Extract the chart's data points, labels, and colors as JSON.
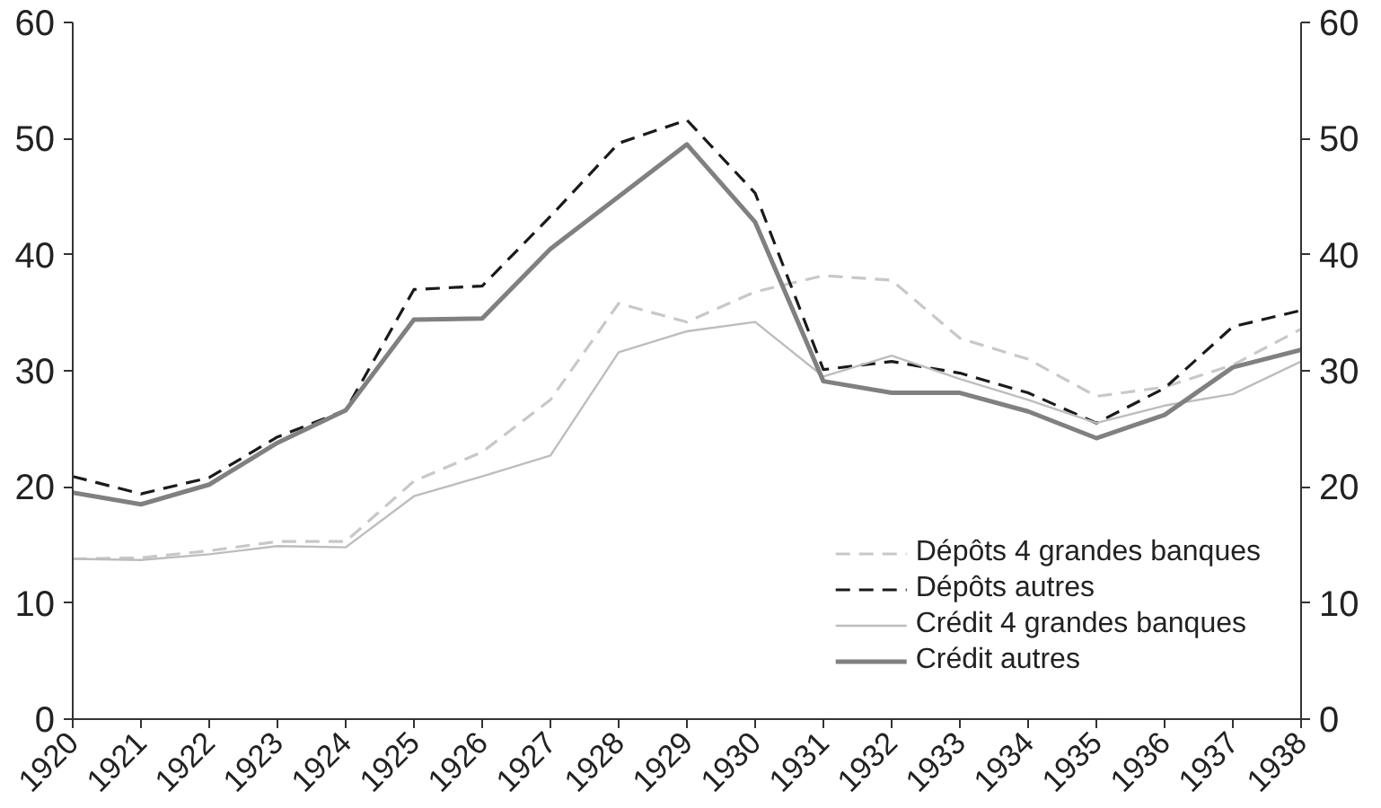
{
  "chart_data": {
    "type": "line",
    "categories": [
      "1920",
      "1921",
      "1922",
      "1923",
      "1924",
      "1925",
      "1926",
      "1927",
      "1928",
      "1929",
      "1930",
      "1931",
      "1932",
      "1933",
      "1934",
      "1935",
      "1936",
      "1937",
      "1938"
    ],
    "series": [
      {
        "name": "Dépôts 4 grandes banques",
        "color": "#c8c8c8",
        "line_style": "dashed",
        "values": [
          13.8,
          13.9,
          14.5,
          15.3,
          15.3,
          20.5,
          23,
          27.5,
          35.8,
          34.2,
          36.8,
          38.2,
          37.8,
          32.8,
          31,
          27.8,
          28.6,
          30.5,
          33.6
        ]
      },
      {
        "name": "Dépôts autres",
        "color": "#1a1a1a",
        "line_style": "dashed",
        "values": [
          20.9,
          19.4,
          20.8,
          24.3,
          26.6,
          37,
          37.3,
          43.3,
          49.6,
          51.6,
          45.3,
          30.1,
          30.8,
          29.8,
          28.1,
          25.5,
          28.5,
          33.8,
          35.2
        ]
      },
      {
        "name": "Crédit 4 grandes banques",
        "color": "#bdbdbd",
        "line_style": "solid",
        "values": [
          13.8,
          13.7,
          14.2,
          14.9,
          14.8,
          19.2,
          20.9,
          22.7,
          31.6,
          33.4,
          34.2,
          29.5,
          31.3,
          29.3,
          27.5,
          25.5,
          27,
          28,
          30.8
        ]
      },
      {
        "name": "Crédit autres",
        "color": "#808080",
        "line_style": "solid",
        "values": [
          19.5,
          18.5,
          20.2,
          23.8,
          26.6,
          34.4,
          34.5,
          40.5,
          45,
          49.5,
          42.8,
          29.1,
          28.1,
          28.1,
          26.5,
          24.2,
          26.2,
          30.3,
          31.8
        ]
      }
    ],
    "ylim": [
      0,
      60
    ],
    "yticks": [
      0,
      10,
      20,
      30,
      40,
      50,
      60
    ],
    "y2lim": [
      0,
      60
    ],
    "y2ticks": [
      0,
      10,
      20,
      30,
      40,
      50,
      60
    ],
    "grid": false,
    "legend": "bottom right",
    "marker": "none"
  }
}
